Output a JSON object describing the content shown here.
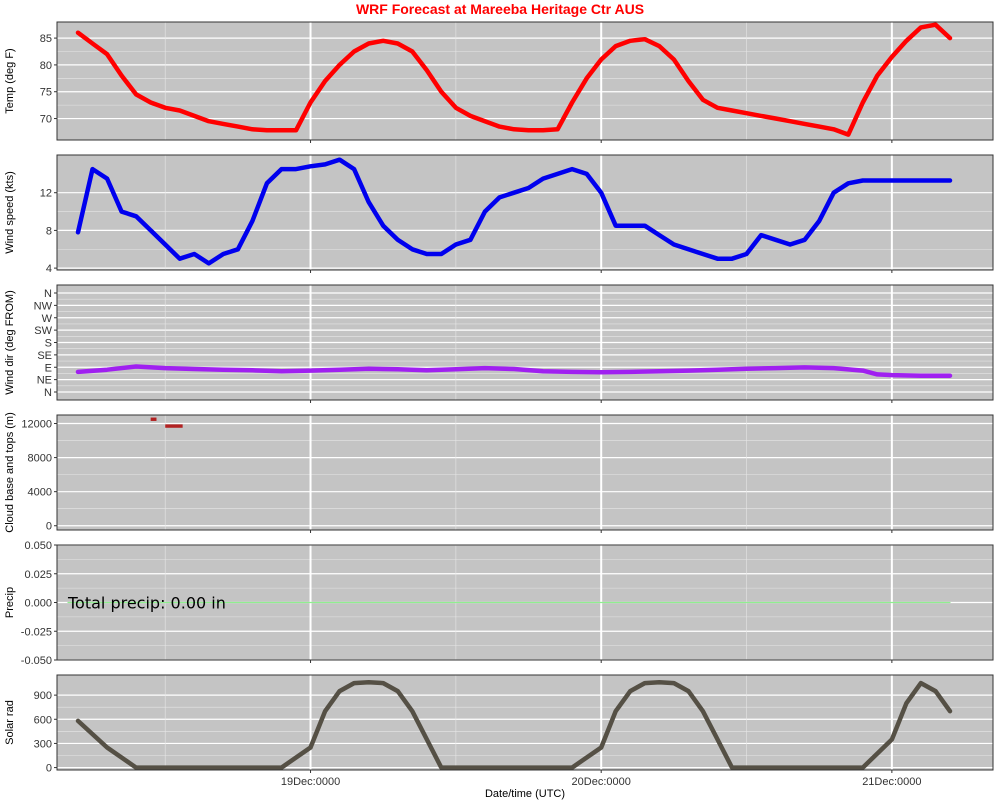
{
  "title": "WRF Forecast at Mareeba Heritage Ctr AUS",
  "title_color": "#ff0000",
  "background": {
    "panel": "#c4c4c4",
    "grid_major": "#ffffff",
    "grid_minor": "#e6e6e6",
    "frame": "#333333"
  },
  "chart_data": [
    {
      "type": "line",
      "ylabel": "Temp (deg F)",
      "color": "#ff0000",
      "y_ticks": [
        "70",
        "75",
        "80",
        "85"
      ],
      "ylim": [
        66,
        88
      ],
      "x": [
        0.0,
        0.05,
        0.1,
        0.15,
        0.2,
        0.25,
        0.3,
        0.35,
        0.4,
        0.45,
        0.5,
        0.55,
        0.6,
        0.65,
        0.7,
        0.75,
        0.8,
        0.85,
        0.9,
        0.95,
        1.0,
        1.05,
        1.1,
        1.15,
        1.2,
        1.25,
        1.3,
        1.35,
        1.4,
        1.45,
        1.5,
        1.55,
        1.6,
        1.65,
        1.7,
        1.75,
        1.8,
        1.85,
        1.9,
        1.95,
        2.0,
        2.05,
        2.1,
        2.15,
        2.2,
        2.25,
        2.3,
        2.35,
        2.4,
        2.45,
        2.5,
        2.55,
        2.6,
        2.65,
        2.7,
        2.75,
        2.8,
        2.85,
        2.9,
        2.95,
        3.0
      ],
      "values": [
        86,
        84,
        82,
        78,
        74.5,
        73,
        72,
        71.5,
        70.5,
        69.5,
        69,
        68.5,
        68,
        67.8,
        67.8,
        67.8,
        73,
        77,
        80,
        82.5,
        84,
        84.5,
        84,
        82.5,
        79,
        75,
        72,
        70.5,
        69.5,
        68.5,
        68,
        67.8,
        67.8,
        68,
        73,
        77.5,
        81,
        83.5,
        84.5,
        84.8,
        83.5,
        81,
        77,
        73.5,
        72,
        71.5,
        71,
        70.5,
        70,
        69.5,
        69,
        68.5,
        68,
        67,
        73,
        78,
        81.5,
        84.5,
        87,
        87.5,
        85
      ]
    },
    {
      "type": "line",
      "ylabel": "Wind speed (kts)",
      "color": "#0000ee",
      "y_ticks": [
        "4",
        "8",
        "12"
      ],
      "ylim": [
        3.8,
        16
      ],
      "x": [
        0.0,
        0.05,
        0.1,
        0.15,
        0.2,
        0.25,
        0.3,
        0.35,
        0.4,
        0.45,
        0.5,
        0.55,
        0.6,
        0.65,
        0.7,
        0.75,
        0.8,
        0.85,
        0.9,
        0.95,
        1.0,
        1.05,
        1.1,
        1.15,
        1.2,
        1.25,
        1.3,
        1.35,
        1.4,
        1.45,
        1.5,
        1.55,
        1.6,
        1.65,
        1.7,
        1.75,
        1.8,
        1.85,
        1.9,
        1.95,
        2.0,
        2.05,
        2.1,
        2.15,
        2.2,
        2.25,
        2.3,
        2.35,
        2.4,
        2.45,
        2.5,
        2.55,
        2.6,
        2.65,
        2.7,
        2.75,
        2.8,
        2.85,
        2.9,
        2.95,
        3.0
      ],
      "values": [
        7.8,
        14.5,
        13.5,
        10,
        9.5,
        8,
        6.5,
        5,
        5.5,
        4.5,
        5.5,
        6,
        9,
        13,
        14.5,
        14.5,
        14.8,
        15,
        15.5,
        14.5,
        11,
        8.5,
        7,
        6,
        5.5,
        5.5,
        6.5,
        7,
        10,
        11.5,
        12,
        12.5,
        13.5,
        14,
        14.5,
        14,
        12,
        8.5,
        8.5,
        8.5,
        7.5,
        6.5,
        6,
        5.5,
        5,
        5,
        5.5,
        7.5,
        7,
        6.5,
        7,
        9,
        12,
        13,
        13.3,
        13.3,
        13.3,
        13.3,
        13.3,
        13.3,
        13.3
      ]
    },
    {
      "type": "line",
      "ylabel": "Wind dir (deg FROM)",
      "color": "#a020f0",
      "y_ticks": [
        "N",
        "NE",
        "E",
        "SE",
        "S",
        "SW",
        "W",
        "NW",
        "N"
      ],
      "ylim": [
        0,
        360
      ],
      "x": [
        0.0,
        0.1,
        0.2,
        0.3,
        0.4,
        0.5,
        0.6,
        0.7,
        0.8,
        0.9,
        1.0,
        1.1,
        1.2,
        1.3,
        1.4,
        1.5,
        1.6,
        1.7,
        1.8,
        1.9,
        2.0,
        2.1,
        2.2,
        2.3,
        2.4,
        2.5,
        2.6,
        2.7,
        2.75,
        2.8,
        2.9,
        3.0
      ],
      "values": [
        88,
        95,
        105,
        100,
        97,
        95,
        93,
        90,
        92,
        95,
        98,
        96,
        93,
        96,
        100,
        97,
        90,
        88,
        87,
        88,
        90,
        92,
        95,
        98,
        100,
        102,
        100,
        92,
        80,
        78,
        76,
        76
      ]
    },
    {
      "type": "bar",
      "ylabel": "Cloud base and tops (m)",
      "color": "#b22222",
      "y_ticks": [
        "0",
        "4000",
        "8000",
        "12000"
      ],
      "ylim": [
        -500,
        13000
      ],
      "segments": [
        {
          "x0": 0.25,
          "x1": 0.27,
          "base": 12300,
          "top": 12700
        },
        {
          "x0": 0.3,
          "x1": 0.36,
          "base": 11500,
          "top": 11900
        }
      ]
    },
    {
      "type": "line",
      "ylabel": "Precip",
      "color": "#90ee90",
      "y_ticks": [
        "-0.050",
        "-0.025",
        "0.000",
        "0.025",
        "0.050"
      ],
      "ylim": [
        -0.05,
        0.05
      ],
      "x": [
        0.0,
        3.0
      ],
      "values": [
        0,
        0
      ],
      "annotation": "Total precip: 0.00 in"
    },
    {
      "type": "line",
      "ylabel": "Solar rad",
      "color": "#555045",
      "y_ticks": [
        "0",
        "300",
        "600",
        "900"
      ],
      "ylim": [
        -30,
        1150
      ],
      "x": [
        0.0,
        0.1,
        0.2,
        0.3,
        0.4,
        0.5,
        0.6,
        0.7,
        0.8,
        0.85,
        0.9,
        0.95,
        1.0,
        1.05,
        1.1,
        1.15,
        1.2,
        1.25,
        1.3,
        1.35,
        1.4,
        1.5,
        1.6,
        1.7,
        1.8,
        1.85,
        1.9,
        1.95,
        2.0,
        2.05,
        2.1,
        2.15,
        2.2,
        2.25,
        2.3,
        2.35,
        2.4,
        2.5,
        2.6,
        2.7,
        2.8,
        2.85,
        2.9,
        2.95,
        3.0
      ],
      "values": [
        580,
        250,
        0,
        0,
        0,
        0,
        0,
        0,
        250,
        700,
        950,
        1050,
        1060,
        1050,
        950,
        700,
        350,
        0,
        0,
        0,
        0,
        0,
        0,
        0,
        250,
        700,
        950,
        1050,
        1060,
        1050,
        950,
        700,
        350,
        0,
        0,
        0,
        0,
        0,
        0,
        0,
        350,
        800,
        1050,
        950,
        700
      ]
    }
  ],
  "x_axis": {
    "xlabel": "Date/time (UTC)",
    "tick_labels": [
      "19Dec:0000",
      "20Dec:0000",
      "21Dec:0000"
    ],
    "tick_x": [
      0.8,
      1.8,
      2.8
    ]
  }
}
